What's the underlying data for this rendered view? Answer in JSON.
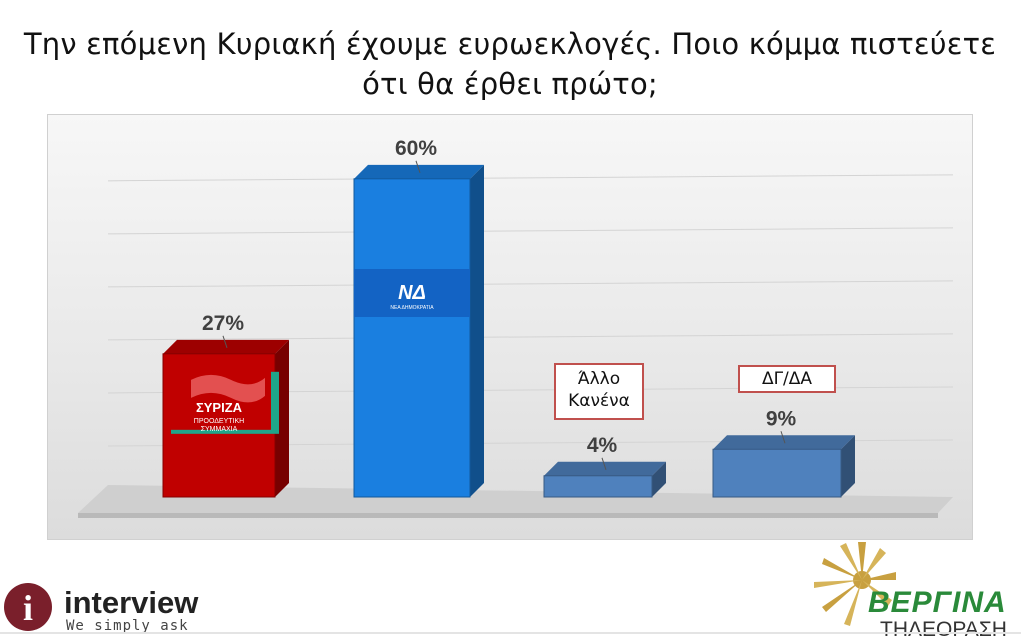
{
  "title_line1": "Την επόμενη Κυριακή έχουμε ευρωεκλογές. Ποιο κόμμα πιστεύετε",
  "title_line2": "ότι θα έρθει πρώτο;",
  "chart_data": {
    "type": "bar",
    "categories": [
      "ΣΥΡΙΖΑ",
      "ΝΔ",
      "Άλλο Κανένα",
      "ΔΓ/ΔΑ"
    ],
    "values": [
      27,
      60,
      4,
      9
    ],
    "value_labels": [
      "27%",
      "60%",
      "4%",
      "9%"
    ],
    "ylim": [
      0,
      66
    ],
    "grid": true,
    "bar_colors": [
      "#c00000",
      "#1a7fe0",
      "#4f81bd",
      "#4f81bd"
    ]
  },
  "callouts": {
    "other_line1": "Άλλο",
    "other_line2": "Κανένα",
    "dk": "ΔΓ/ΔΑ"
  },
  "bar_logos": {
    "syriza_name": "ΣΥΡΙΖΑ",
    "syriza_sub1": "ΠΡΟΟΔΕΥΤΙΚΗ",
    "syriza_sub2": "ΣΥΜΜΑΧΙΑ",
    "nd_mark": "ΝΔ",
    "nd_sub": "ΝΕΑ ΔΗΜΟΚΡΑΤΙΑ"
  },
  "brand_interview": {
    "name": "interview",
    "tagline": "We simply ask",
    "icon_letter": "i"
  },
  "brand_vergina": {
    "name": "ΒΕΡΓΙΝΑ",
    "sub": "ΤΗΛΕΟΡΑΣΗ"
  },
  "colors": {
    "syriza_red": "#c00000",
    "nd_blue": "#1a7fe0",
    "other_blue": "#4f81bd",
    "callout_border": "#c0504d",
    "interview_maroon": "#7a1f2b",
    "vergina_gold": "#c8a040"
  }
}
